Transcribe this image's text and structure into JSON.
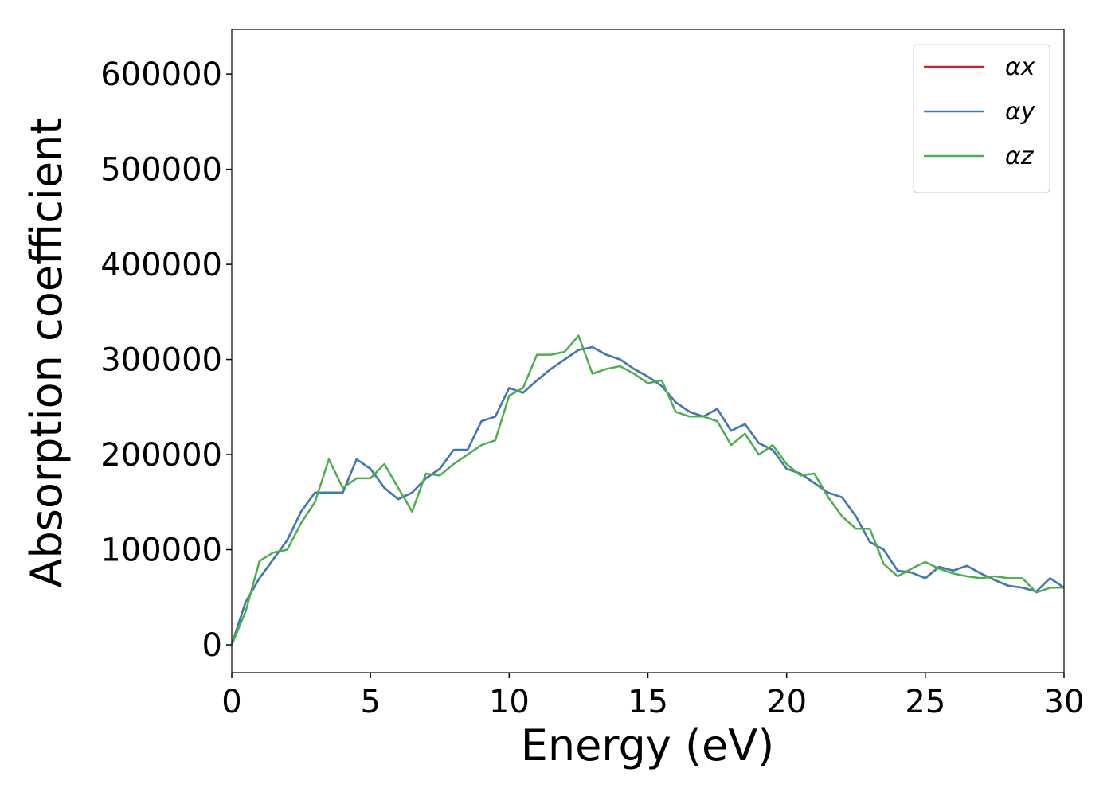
{
  "chart_data": {
    "type": "line",
    "xlabel": "Energy (eV)",
    "ylabel": "Absorption coefficient",
    "x": [
      0,
      0.5,
      1,
      1.5,
      2,
      2.5,
      3,
      3.5,
      4,
      4.5,
      5,
      5.5,
      6,
      6.5,
      7,
      7.5,
      8,
      8.5,
      9,
      9.5,
      10,
      10.5,
      11,
      11.5,
      12,
      12.5,
      13,
      13.5,
      14,
      14.5,
      15,
      15.5,
      16,
      16.5,
      17,
      17.5,
      18,
      18.5,
      19,
      19.5,
      20,
      20.5,
      21,
      21.5,
      22,
      22.5,
      23,
      23.5,
      24,
      24.5,
      25,
      25.5,
      26,
      26.5,
      27,
      27.5,
      28,
      28.5,
      29,
      29.5,
      30
    ],
    "series": [
      {
        "name": "αx",
        "color": "#e41a1c",
        "values": [
          0,
          45000,
          70000,
          90000,
          110000,
          140000,
          160000,
          160000,
          160000,
          195000,
          185000,
          165000,
          153000,
          160000,
          175000,
          185000,
          205000,
          205000,
          235000,
          240000,
          270000,
          265000,
          278000,
          290000,
          300000,
          310000,
          313000,
          305000,
          300000,
          290000,
          282000,
          272000,
          255000,
          245000,
          240000,
          248000,
          225000,
          232000,
          212000,
          205000,
          185000,
          180000,
          170000,
          160000,
          155000,
          135000,
          108000,
          100000,
          78000,
          76000,
          70000,
          82000,
          78000,
          83000,
          75000,
          68000,
          62000,
          60000,
          56000,
          70000,
          60000
        ]
      },
      {
        "name": "αy",
        "color": "#377eb8",
        "values": [
          0,
          45000,
          70000,
          90000,
          110000,
          140000,
          160000,
          160000,
          160000,
          195000,
          185000,
          165000,
          153000,
          160000,
          175000,
          185000,
          205000,
          205000,
          235000,
          240000,
          270000,
          265000,
          278000,
          290000,
          300000,
          310000,
          313000,
          305000,
          300000,
          290000,
          282000,
          272000,
          255000,
          245000,
          240000,
          248000,
          225000,
          232000,
          212000,
          205000,
          185000,
          180000,
          170000,
          160000,
          155000,
          135000,
          108000,
          100000,
          78000,
          76000,
          70000,
          82000,
          78000,
          83000,
          75000,
          68000,
          62000,
          60000,
          56000,
          70000,
          60000
        ]
      },
      {
        "name": "αz",
        "color": "#4daf4a",
        "values": [
          0,
          35000,
          88000,
          97000,
          100000,
          128000,
          150000,
          195000,
          165000,
          175000,
          175000,
          190000,
          165000,
          140000,
          180000,
          178000,
          190000,
          200000,
          210000,
          215000,
          262000,
          270000,
          305000,
          305000,
          308000,
          325000,
          285000,
          290000,
          293000,
          285000,
          275000,
          278000,
          245000,
          240000,
          240000,
          235000,
          210000,
          222000,
          200000,
          210000,
          190000,
          178000,
          180000,
          155000,
          135000,
          122000,
          122000,
          85000,
          72000,
          80000,
          87000,
          80000,
          75000,
          72000,
          70000,
          72000,
          70000,
          70000,
          55000,
          60000,
          60000
        ]
      }
    ],
    "xlim": [
      0,
      30
    ],
    "xticks": [
      0,
      5,
      10,
      15,
      20,
      25,
      30
    ],
    "ylim": [
      -29300,
      647000
    ],
    "yticks": [
      0,
      100000,
      200000,
      300000,
      400000,
      500000,
      600000
    ],
    "legend": "upper right"
  }
}
